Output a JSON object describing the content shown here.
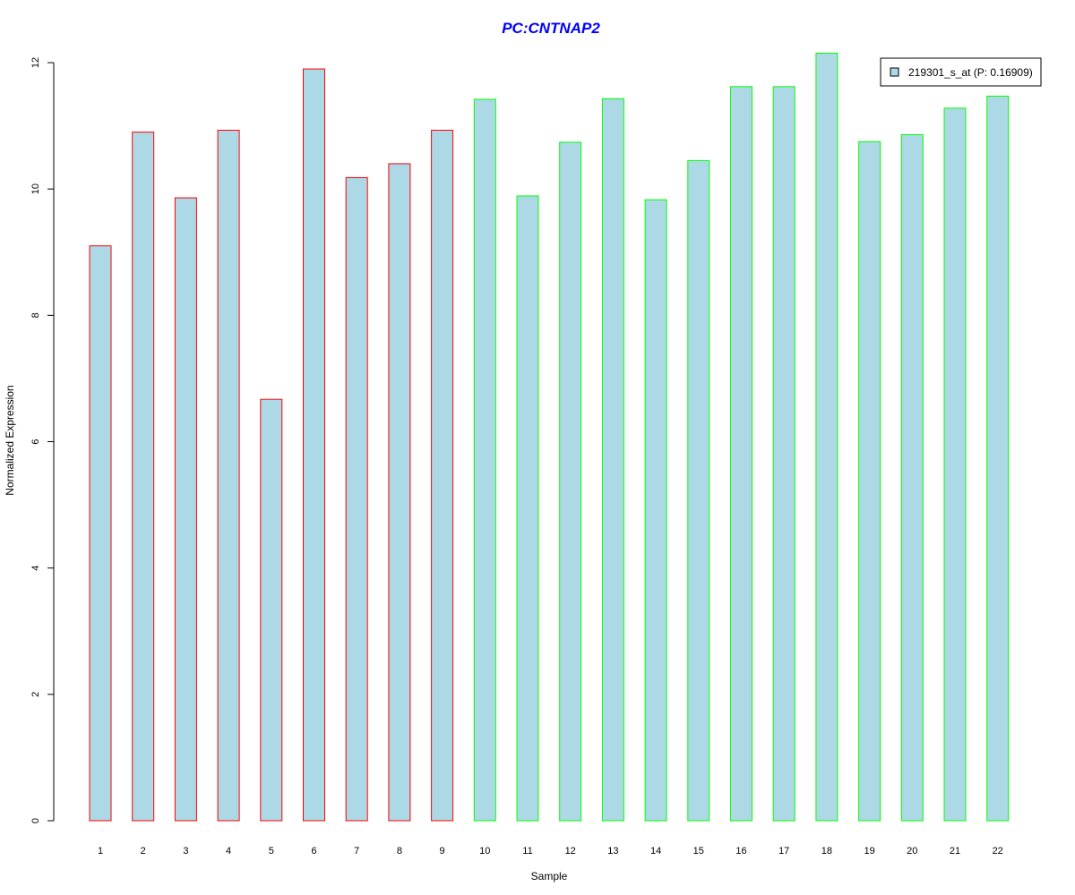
{
  "chart_data": {
    "type": "bar",
    "title": "PC:CNTNAP2",
    "xlabel": "Sample",
    "ylabel": "Normalized Expression",
    "categories": [
      "1",
      "2",
      "3",
      "4",
      "5",
      "6",
      "7",
      "8",
      "9",
      "10",
      "11",
      "12",
      "13",
      "14",
      "15",
      "16",
      "17",
      "18",
      "19",
      "20",
      "21",
      "22"
    ],
    "series": [
      {
        "name": "219301_s_at (P: 0.16909)",
        "values": [
          9.1,
          10.9,
          9.86,
          10.93,
          6.67,
          11.9,
          10.18,
          10.4,
          10.93,
          11.42,
          9.89,
          10.74,
          11.43,
          9.83,
          10.45,
          11.62,
          11.62,
          12.15,
          10.75,
          10.86,
          11.28,
          11.47
        ]
      }
    ],
    "group_border_colors": [
      "#ff0000",
      "#ff0000",
      "#ff0000",
      "#ff0000",
      "#ff0000",
      "#ff0000",
      "#ff0000",
      "#ff0000",
      "#ff0000",
      "#00ff00",
      "#00ff00",
      "#00ff00",
      "#00ff00",
      "#00ff00",
      "#00ff00",
      "#00ff00",
      "#00ff00",
      "#00ff00",
      "#00ff00",
      "#00ff00",
      "#00ff00",
      "#00ff00"
    ],
    "ylim": [
      0,
      12
    ],
    "yticks": [
      0,
      2,
      4,
      6,
      8,
      10,
      12
    ],
    "grid": false,
    "legend_position": "top-right",
    "colors": {
      "bar_fill": "#add8e6",
      "title": "#0000ff",
      "axis": "#000000"
    }
  }
}
